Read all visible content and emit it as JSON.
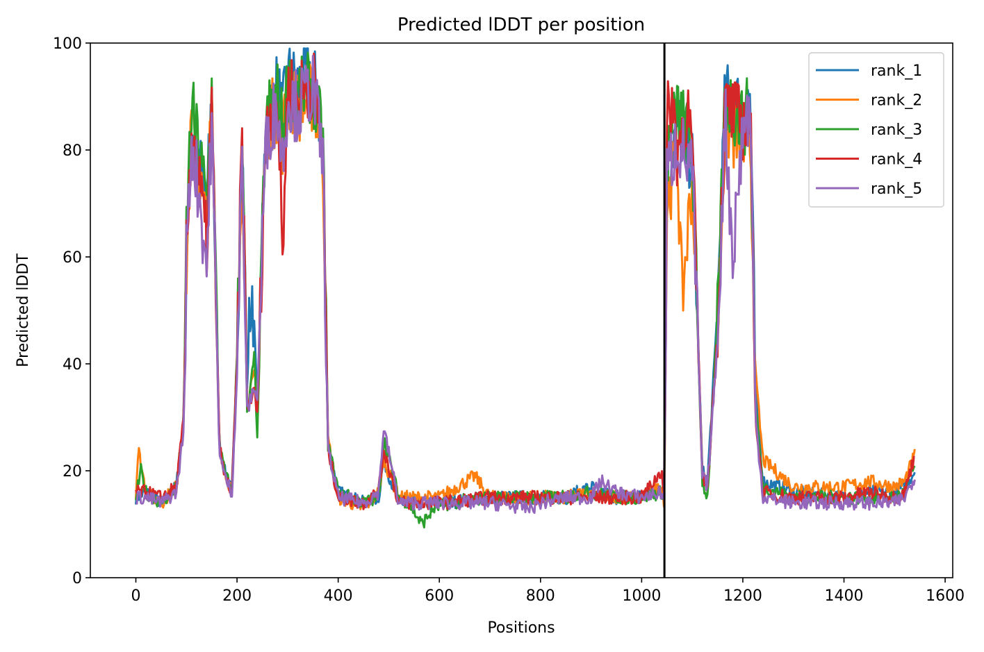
{
  "chart_data": {
    "type": "line",
    "title": "Predicted lDDT per position",
    "xlabel": "Positions",
    "ylabel": "Predicted lDDT",
    "xlim": [
      -90,
      1615
    ],
    "ylim": [
      0,
      100
    ],
    "xticks": [
      0,
      200,
      400,
      600,
      800,
      1000,
      1200,
      1400,
      1600
    ],
    "yticks": [
      0,
      20,
      40,
      60,
      80,
      100
    ],
    "grid": false,
    "legend_position": "top-right",
    "vline": 1045,
    "noise_seed": 7,
    "series": [
      {
        "name": "rank_1",
        "color": "#1f77b4",
        "x": [
          0,
          20,
          50,
          80,
          95,
          100,
          110,
          125,
          140,
          150,
          165,
          175,
          190,
          200,
          210,
          220,
          225,
          235,
          240,
          255,
          265,
          280,
          290,
          300,
          320,
          350,
          360,
          370,
          380,
          400,
          450,
          480,
          490,
          520,
          600,
          700,
          800,
          850,
          900,
          950,
          1000,
          1040,
          1045,
          1050,
          1070,
          1100,
          1120,
          1130,
          1150,
          1165,
          1200,
          1215,
          1225,
          1240,
          1300,
          1400,
          1450,
          1500,
          1520,
          1540
        ],
        "values": [
          15,
          16,
          14,
          17,
          30,
          60,
          85,
          78,
          68,
          90,
          25,
          20,
          17,
          40,
          85,
          35,
          50,
          48,
          30,
          80,
          88,
          92,
          86,
          94,
          92,
          95,
          88,
          80,
          25,
          16,
          14,
          15,
          22,
          14,
          14,
          15,
          15,
          15,
          17,
          15,
          15,
          17,
          15,
          75,
          85,
          78,
          20,
          18,
          50,
          90,
          88,
          90,
          35,
          18,
          16,
          15,
          16,
          16,
          17,
          20
        ]
      },
      {
        "name": "rank_2",
        "color": "#ff7f0e",
        "x": [
          0,
          5,
          20,
          50,
          80,
          95,
          100,
          110,
          125,
          140,
          150,
          165,
          175,
          190,
          200,
          210,
          220,
          235,
          240,
          255,
          265,
          280,
          290,
          300,
          320,
          350,
          360,
          370,
          380,
          400,
          450,
          480,
          490,
          520,
          600,
          670,
          700,
          800,
          850,
          900,
          950,
          1000,
          1040,
          1045,
          1050,
          1070,
          1080,
          1100,
          1120,
          1130,
          1150,
          1165,
          1200,
          1215,
          1225,
          1240,
          1300,
          1400,
          1450,
          1500,
          1520,
          1540
        ],
        "values": [
          16,
          24,
          16,
          14,
          17,
          30,
          58,
          85,
          75,
          65,
          88,
          25,
          20,
          16,
          40,
          82,
          33,
          38,
          32,
          78,
          86,
          88,
          82,
          90,
          88,
          90,
          86,
          78,
          26,
          15,
          13,
          16,
          22,
          15,
          15,
          19,
          15,
          15,
          15,
          16,
          15,
          15,
          17,
          14,
          70,
          80,
          52,
          75,
          20,
          17,
          45,
          85,
          80,
          82,
          38,
          22,
          17,
          17,
          18,
          17,
          18,
          23
        ]
      },
      {
        "name": "rank_3",
        "color": "#2ca02c",
        "x": [
          0,
          10,
          20,
          50,
          80,
          95,
          100,
          110,
          125,
          140,
          150,
          165,
          175,
          190,
          200,
          210,
          220,
          235,
          240,
          255,
          265,
          280,
          290,
          300,
          320,
          350,
          360,
          370,
          380,
          400,
          450,
          480,
          490,
          520,
          540,
          565,
          590,
          620,
          700,
          800,
          850,
          900,
          950,
          1000,
          1040,
          1045,
          1050,
          1070,
          1100,
          1120,
          1130,
          1150,
          1165,
          1200,
          1215,
          1225,
          1240,
          1300,
          1400,
          1450,
          1500,
          1520,
          1540
        ],
        "values": [
          15,
          20,
          16,
          14,
          17,
          30,
          65,
          88,
          80,
          70,
          91,
          25,
          20,
          16,
          42,
          86,
          30,
          42,
          25,
          82,
          88,
          90,
          84,
          92,
          90,
          92,
          86,
          82,
          25,
          16,
          14,
          15,
          26,
          15,
          14,
          10,
          13,
          14,
          15,
          15,
          15,
          16,
          15,
          15,
          16,
          15,
          78,
          88,
          80,
          18,
          15,
          48,
          90,
          85,
          88,
          32,
          17,
          15,
          15,
          15,
          15,
          16,
          21
        ]
      },
      {
        "name": "rank_4",
        "color": "#d62728",
        "x": [
          0,
          20,
          50,
          80,
          95,
          100,
          110,
          125,
          140,
          150,
          165,
          175,
          190,
          200,
          210,
          220,
          235,
          240,
          255,
          265,
          280,
          290,
          300,
          320,
          350,
          360,
          370,
          380,
          400,
          450,
          480,
          490,
          520,
          600,
          700,
          800,
          850,
          900,
          950,
          1000,
          1040,
          1045,
          1050,
          1060,
          1070,
          1090,
          1100,
          1120,
          1130,
          1150,
          1165,
          1200,
          1215,
          1225,
          1240,
          1300,
          1400,
          1450,
          1500,
          1520,
          1540
        ],
        "values": [
          16,
          16,
          15,
          17,
          30,
          60,
          84,
          74,
          62,
          88,
          25,
          19,
          16,
          40,
          83,
          32,
          35,
          30,
          80,
          87,
          90,
          60,
          92,
          90,
          93,
          87,
          80,
          24,
          15,
          14,
          16,
          24,
          14,
          14,
          15,
          15,
          15,
          15,
          15,
          15,
          20,
          15,
          85,
          90,
          80,
          88,
          80,
          19,
          17,
          46,
          88,
          85,
          86,
          30,
          16,
          15,
          15,
          16,
          15,
          16,
          23
        ]
      },
      {
        "name": "rank_5",
        "color": "#9467bd",
        "x": [
          0,
          20,
          50,
          80,
          95,
          100,
          110,
          125,
          140,
          150,
          165,
          175,
          190,
          200,
          210,
          220,
          235,
          240,
          255,
          265,
          280,
          290,
          300,
          320,
          350,
          360,
          370,
          380,
          400,
          450,
          480,
          490,
          520,
          600,
          700,
          780,
          800,
          850,
          900,
          920,
          950,
          1000,
          1040,
          1045,
          1050,
          1070,
          1100,
          1120,
          1130,
          1150,
          1165,
          1180,
          1200,
          1215,
          1225,
          1240,
          1300,
          1400,
          1450,
          1500,
          1520,
          1540
        ],
        "values": [
          15,
          15,
          14,
          16,
          28,
          60,
          82,
          72,
          58,
          86,
          24,
          19,
          16,
          38,
          80,
          31,
          36,
          33,
          78,
          85,
          88,
          78,
          90,
          88,
          92,
          85,
          78,
          24,
          15,
          14,
          16,
          28,
          14,
          14,
          14,
          13,
          14,
          15,
          15,
          18,
          16,
          15,
          16,
          14,
          75,
          82,
          76,
          19,
          17,
          44,
          87,
          60,
          84,
          88,
          30,
          15,
          14,
          14,
          14,
          14,
          15,
          19
        ]
      }
    ]
  }
}
